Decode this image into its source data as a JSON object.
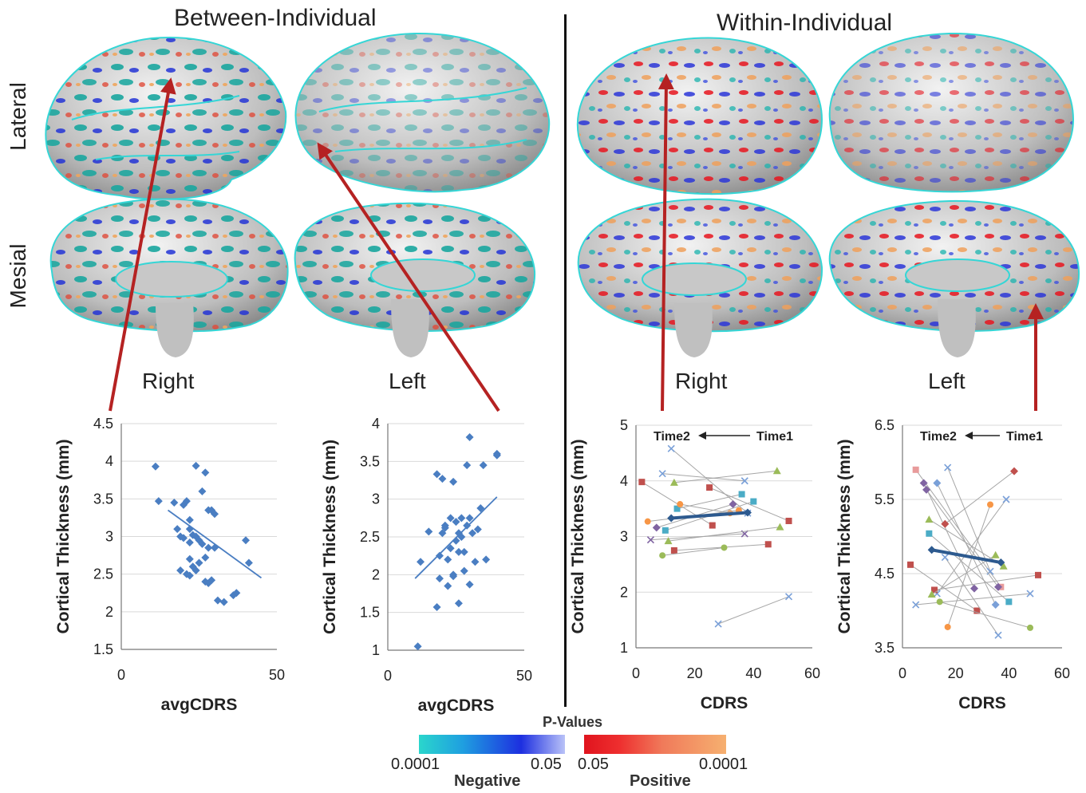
{
  "headers": {
    "between": "Between-Individual",
    "within": "Within-Individual"
  },
  "view_labels": {
    "lateral": "Lateral",
    "mesial": "Mesial"
  },
  "hemi_labels": {
    "right": "Right",
    "left": "Left"
  },
  "colors": {
    "scatter_blue": "#4a7ec2",
    "mean_line": "#2d5a8f",
    "arrow_red": "#b52222",
    "outline_cyan": "#35d6d6",
    "brain_gray": "#c8c8c8",
    "neg_start": "#2ad6cc",
    "neg_mid": "#1d2fe0",
    "neg_end": "#b9c2f8",
    "pos_start": "#e0141e",
    "pos_mid": "#f07a5a",
    "pos_end": "#f6b070"
  },
  "legend": {
    "title": "P-Values",
    "neg_left": "0.0001",
    "neg_right": "0.05",
    "pos_left": "0.05",
    "pos_right": "0.0001",
    "neg_label": "Negative",
    "pos_label": "Positive"
  },
  "chart_data": [
    {
      "type": "scatter",
      "panel": "between-right",
      "xlabel": "avgCDRS",
      "ylabel": "Cortical Thickness (mm)",
      "xlim": [
        0,
        50
      ],
      "ylim": [
        1.5,
        4.5
      ],
      "xticks": [
        "0",
        "50"
      ],
      "yticks": [
        "1.5",
        "2",
        "2.5",
        "3",
        "3.5",
        "4",
        "4.5"
      ],
      "grid": "horizontal",
      "trendline": [
        [
          15,
          3.35
        ],
        [
          45,
          2.45
        ]
      ],
      "points": [
        [
          11,
          3.93
        ],
        [
          12,
          3.47
        ],
        [
          17,
          3.45
        ],
        [
          20,
          3.42
        ],
        [
          21,
          3.47
        ],
        [
          22,
          3.22
        ],
        [
          22,
          3.1
        ],
        [
          24,
          3.94
        ],
        [
          26,
          3.6
        ],
        [
          27,
          3.85
        ],
        [
          28,
          3.35
        ],
        [
          29,
          3.35
        ],
        [
          30,
          3.3
        ],
        [
          18,
          3.1
        ],
        [
          19,
          3.0
        ],
        [
          20,
          2.98
        ],
        [
          22,
          2.92
        ],
        [
          23,
          3.02
        ],
        [
          24,
          3.0
        ],
        [
          25,
          2.95
        ],
        [
          26,
          2.9
        ],
        [
          28,
          2.85
        ],
        [
          30,
          2.85
        ],
        [
          19,
          2.55
        ],
        [
          21,
          2.5
        ],
        [
          22,
          2.48
        ],
        [
          23,
          2.6
        ],
        [
          25,
          2.65
        ],
        [
          27,
          2.4
        ],
        [
          28,
          2.38
        ],
        [
          29,
          2.42
        ],
        [
          31,
          2.15
        ],
        [
          33,
          2.13
        ],
        [
          36,
          2.22
        ],
        [
          37,
          2.25
        ],
        [
          40,
          2.95
        ],
        [
          41,
          2.65
        ],
        [
          27,
          2.72
        ],
        [
          24,
          2.55
        ],
        [
          22,
          2.7
        ]
      ]
    },
    {
      "type": "scatter",
      "panel": "between-left",
      "xlabel": "avgCDRS",
      "ylabel": "Cortical Thickness (mm)",
      "xlim": [
        0,
        50
      ],
      "ylim": [
        1,
        4
      ],
      "xticks": [
        "0",
        "50"
      ],
      "yticks": [
        "1",
        "1.5",
        "2",
        "2.5",
        "3",
        "3.5",
        "4"
      ],
      "grid": "horizontal",
      "trendline": [
        [
          10,
          1.95
        ],
        [
          40,
          3.03
        ]
      ],
      "points": [
        [
          11,
          1.05
        ],
        [
          12,
          2.17
        ],
        [
          15,
          2.57
        ],
        [
          18,
          1.57
        ],
        [
          18,
          3.33
        ],
        [
          19,
          2.25
        ],
        [
          20,
          2.55
        ],
        [
          20,
          3.27
        ],
        [
          21,
          2.65
        ],
        [
          22,
          2.2
        ],
        [
          22,
          1.85
        ],
        [
          23,
          2.35
        ],
        [
          23,
          2.75
        ],
        [
          24,
          2.0
        ],
        [
          24,
          3.23
        ],
        [
          25,
          2.45
        ],
        [
          25,
          2.7
        ],
        [
          26,
          2.3
        ],
        [
          26,
          1.62
        ],
        [
          27,
          2.5
        ],
        [
          27,
          2.75
        ],
        [
          28,
          2.3
        ],
        [
          28,
          2.05
        ],
        [
          29,
          2.65
        ],
        [
          29,
          3.45
        ],
        [
          30,
          3.82
        ],
        [
          30,
          2.75
        ],
        [
          31,
          2.55
        ],
        [
          32,
          2.17
        ],
        [
          34,
          2.88
        ],
        [
          35,
          3.45
        ],
        [
          36,
          2.2
        ],
        [
          40,
          3.58
        ],
        [
          40,
          3.6
        ],
        [
          24,
          1.98
        ],
        [
          21,
          2.62
        ],
        [
          19,
          1.95
        ],
        [
          26,
          2.55
        ],
        [
          30,
          1.87
        ],
        [
          33,
          2.6
        ]
      ]
    },
    {
      "type": "line",
      "panel": "within-right",
      "xlabel": "CDRS",
      "ylabel": "Cortical Thickness (mm)",
      "xlim": [
        0,
        60
      ],
      "ylim": [
        1,
        5
      ],
      "xticks": [
        "0",
        "20",
        "40",
        "60"
      ],
      "yticks": [
        "1",
        "2",
        "3",
        "4",
        "5"
      ],
      "grid": "horizontal",
      "annotation": {
        "time2": "Time2",
        "time1": "Time1"
      },
      "mean_line": [
        [
          12,
          3.33
        ],
        [
          38,
          3.43
        ]
      ],
      "pairs": [
        {
          "t2": [
            12,
            4.58
          ],
          "t1": [
            38,
            3.42
          ],
          "marker": "x",
          "color": "#7aa0d8"
        },
        {
          "t2": [
            9,
            4.13
          ],
          "t1": [
            37,
            4.0
          ],
          "marker": "x",
          "color": "#7aa0d8"
        },
        {
          "t2": [
            2,
            3.98
          ],
          "t1": [
            26,
            3.2
          ],
          "marker": "square",
          "color": "#c0504d"
        },
        {
          "t2": [
            13,
            3.97
          ],
          "t1": [
            48,
            4.18
          ],
          "marker": "triangle",
          "color": "#9bbb59"
        },
        {
          "t2": [
            25,
            3.88
          ],
          "t1": [
            52,
            3.28
          ],
          "marker": "square",
          "color": "#c0504d"
        },
        {
          "t2": [
            14,
            3.5
          ],
          "t1": [
            36,
            3.76
          ],
          "marker": "square",
          "color": "#4bacc6"
        },
        {
          "t2": [
            15,
            3.58
          ],
          "t1": [
            32,
            3.42
          ],
          "marker": "circle",
          "color": "#f79646"
        },
        {
          "t2": [
            7,
            3.16
          ],
          "t1": [
            33,
            3.58
          ],
          "marker": "diamond",
          "color": "#8064a2"
        },
        {
          "t2": [
            10,
            3.11
          ],
          "t1": [
            40,
            3.63
          ],
          "marker": "square",
          "color": "#4bacc6"
        },
        {
          "t2": [
            4,
            3.27
          ],
          "t1": [
            35,
            3.47
          ],
          "marker": "circle",
          "color": "#f79646"
        },
        {
          "t2": [
            5,
            2.94
          ],
          "t1": [
            37,
            3.05
          ],
          "marker": "x",
          "color": "#8064a2"
        },
        {
          "t2": [
            11,
            2.92
          ],
          "t1": [
            49,
            3.17
          ],
          "marker": "triangle",
          "color": "#9bbb59"
        },
        {
          "t2": [
            13,
            2.75
          ],
          "t1": [
            45,
            2.86
          ],
          "marker": "square",
          "color": "#c0504d"
        },
        {
          "t2": [
            9,
            2.66
          ],
          "t1": [
            30,
            2.8
          ],
          "marker": "circle",
          "color": "#9bbb59"
        },
        {
          "t2": [
            28,
            1.43
          ],
          "t1": [
            52,
            1.92
          ],
          "marker": "x",
          "color": "#7aa0d8"
        }
      ]
    },
    {
      "type": "line",
      "panel": "within-left",
      "xlabel": "CDRS",
      "ylabel": "Cortical Thickness (mm)",
      "xlim": [
        0,
        60
      ],
      "ylim": [
        3.5,
        6.5
      ],
      "xticks": [
        "0",
        "20",
        "40",
        "60"
      ],
      "yticks": [
        "3.5",
        "4.5",
        "5.5",
        "6.5"
      ],
      "grid": "horizontal",
      "annotation": {
        "time2": "Time2",
        "time1": "Time1"
      },
      "mean_line": [
        [
          11,
          4.82
        ],
        [
          37,
          4.65
        ]
      ],
      "pairs": [
        {
          "t2": [
            5,
            5.9
          ],
          "t1": [
            37,
            4.32
          ],
          "marker": "square",
          "color": "#e89b9b"
        },
        {
          "t2": [
            17,
            5.93
          ],
          "t1": [
            33,
            4.53
          ],
          "marker": "x",
          "color": "#7aa0d8"
        },
        {
          "t2": [
            8,
            5.72
          ],
          "t1": [
            27,
            4.3
          ],
          "marker": "diamond",
          "color": "#8064a2"
        },
        {
          "t2": [
            13,
            5.72
          ],
          "t1": [
            35,
            4.08
          ],
          "marker": "diamond",
          "color": "#7aa0d8"
        },
        {
          "t2": [
            9,
            5.63
          ],
          "t1": [
            36,
            4.32
          ],
          "marker": "diamond",
          "color": "#8064a2"
        },
        {
          "t2": [
            42,
            5.88
          ],
          "t1": [
            16,
            5.17
          ],
          "marker": "diamond",
          "color": "#c0504d"
        },
        {
          "t2": [
            39,
            5.5
          ],
          "t1": [
            13,
            4.23
          ],
          "marker": "x",
          "color": "#7aa0d8"
        },
        {
          "t2": [
            10,
            5.04
          ],
          "t1": [
            40,
            4.12
          ],
          "marker": "square",
          "color": "#4bacc6"
        },
        {
          "t2": [
            33,
            5.43
          ],
          "t1": [
            17,
            3.78
          ],
          "marker": "circle",
          "color": "#f79646"
        },
        {
          "t2": [
            12,
            4.28
          ],
          "t1": [
            51,
            4.48
          ],
          "marker": "square",
          "color": "#c0504d"
        },
        {
          "t2": [
            11,
            4.22
          ],
          "t1": [
            35,
            4.75
          ],
          "marker": "triangle",
          "color": "#9bbb59"
        },
        {
          "t2": [
            10,
            5.23
          ],
          "t1": [
            38,
            4.6
          ],
          "marker": "triangle",
          "color": "#9bbb59"
        },
        {
          "t2": [
            5,
            4.08
          ],
          "t1": [
            48,
            4.23
          ],
          "marker": "x",
          "color": "#7aa0d8"
        },
        {
          "t2": [
            3,
            4.62
          ],
          "t1": [
            28,
            4.0
          ],
          "marker": "square",
          "color": "#c0504d"
        },
        {
          "t2": [
            14,
            4.12
          ],
          "t1": [
            48,
            3.77
          ],
          "marker": "circle",
          "color": "#9bbb59"
        },
        {
          "t2": [
            16,
            4.72
          ],
          "t1": [
            36,
            3.67
          ],
          "marker": "x",
          "color": "#7aa0d8"
        }
      ]
    }
  ]
}
